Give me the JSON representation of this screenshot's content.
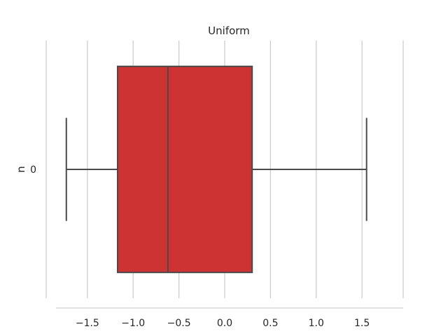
{
  "chart_data": {
    "type": "box",
    "title": "Uniform",
    "xlabel": "",
    "ylabel": "n",
    "orientation": "horizontal",
    "categories": [
      "0"
    ],
    "xlim": [
      -1.95,
      1.95
    ],
    "x_ticks": [
      -1.5,
      -1.0,
      -0.5,
      0.0,
      0.5,
      1.0,
      1.5
    ],
    "x_tick_labels": [
      "−1.5",
      "−1.0",
      "−0.5",
      "0.0",
      "0.5",
      "1.0",
      "1.5"
    ],
    "grid": "vertical",
    "boxes": [
      {
        "category": "0",
        "whisker_low": -1.73,
        "q1": -1.17,
        "median": -0.62,
        "q3": 0.3,
        "whisker_high": 1.55,
        "color": "#cd3333"
      }
    ],
    "colors": {
      "box_fill": "#cd3333",
      "line": "#4a4a4a",
      "grid": "#cccccc",
      "spine": "#cccccc"
    }
  }
}
